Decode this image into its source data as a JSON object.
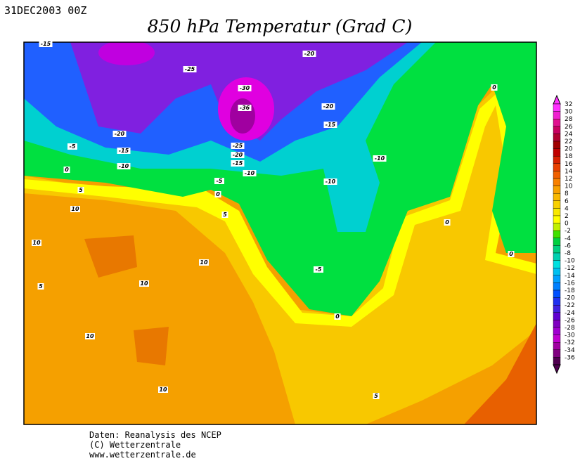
{
  "header": {
    "date": "31DEC2003 00Z",
    "title": "850 hPa Temperatur (Grad C)"
  },
  "legend": {
    "levels": [
      32,
      30,
      28,
      26,
      24,
      22,
      20,
      18,
      16,
      14,
      12,
      10,
      8,
      6,
      4,
      2,
      0,
      -2,
      -4,
      -6,
      -8,
      -10,
      -12,
      -14,
      -16,
      -18,
      -20,
      -22,
      -24,
      -26,
      -28,
      -30,
      -32,
      -34,
      -36
    ]
  },
  "map": {
    "contour_labels": [
      -15,
      -20,
      -25,
      -30,
      -36,
      -20,
      -15,
      -20,
      -5,
      -15,
      -25,
      -20,
      -15,
      -10,
      -10,
      -10,
      0,
      -5,
      -10,
      5,
      0,
      10,
      5,
      0,
      0,
      10,
      0,
      10,
      -5,
      5,
      10,
      0,
      10,
      10,
      5
    ]
  },
  "footer": {
    "lines": [
      "Daten: Reanalysis des NCEP",
      "(C) Wetterzentrale",
      "www.wetterzentrale.de"
    ]
  }
}
